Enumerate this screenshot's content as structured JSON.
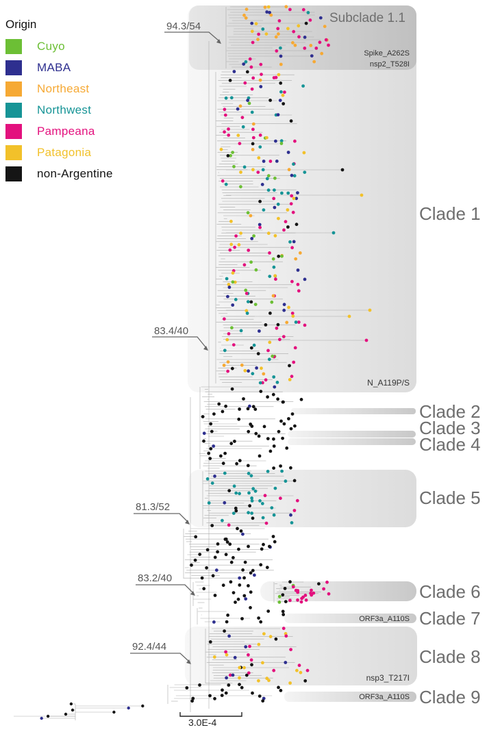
{
  "legend": {
    "title": "Origin",
    "items": [
      {
        "label": "Cuyo",
        "color": "#6cbf35"
      },
      {
        "label": "MABA",
        "color": "#2e2f8f"
      },
      {
        "label": "Northeast",
        "color": "#f6a934"
      },
      {
        "label": "Northwest",
        "color": "#169496"
      },
      {
        "label": "Pampeana",
        "color": "#e3117e"
      },
      {
        "label": "Patagonia",
        "color": "#f2c12a"
      },
      {
        "label": "non-Argentine",
        "color": "#151515"
      }
    ]
  },
  "clades": [
    {
      "label": "Subclade 1.1",
      "mutation": "Spike_A262S\nnsp2_T528I"
    },
    {
      "label": "Clade 1",
      "mutation": "N_A119P/S"
    },
    {
      "label": "Clade 2",
      "mutation": ""
    },
    {
      "label": "Clade 3",
      "mutation": ""
    },
    {
      "label": "Clade 4",
      "mutation": ""
    },
    {
      "label": "Clade 5",
      "mutation": ""
    },
    {
      "label": "Clade 6",
      "mutation": ""
    },
    {
      "label": "Clade 7",
      "mutation": "ORF3a_A110S"
    },
    {
      "label": "Clade 8",
      "mutation": "nsp3_T217I"
    },
    {
      "label": "Clade 9",
      "mutation": "ORF3a_A110S"
    }
  ],
  "node_supports": [
    "94.3/54",
    "83.4/40",
    "81.3/52",
    "83.2/40",
    "92.4/44"
  ],
  "scale_bar": "3.0E-4"
}
